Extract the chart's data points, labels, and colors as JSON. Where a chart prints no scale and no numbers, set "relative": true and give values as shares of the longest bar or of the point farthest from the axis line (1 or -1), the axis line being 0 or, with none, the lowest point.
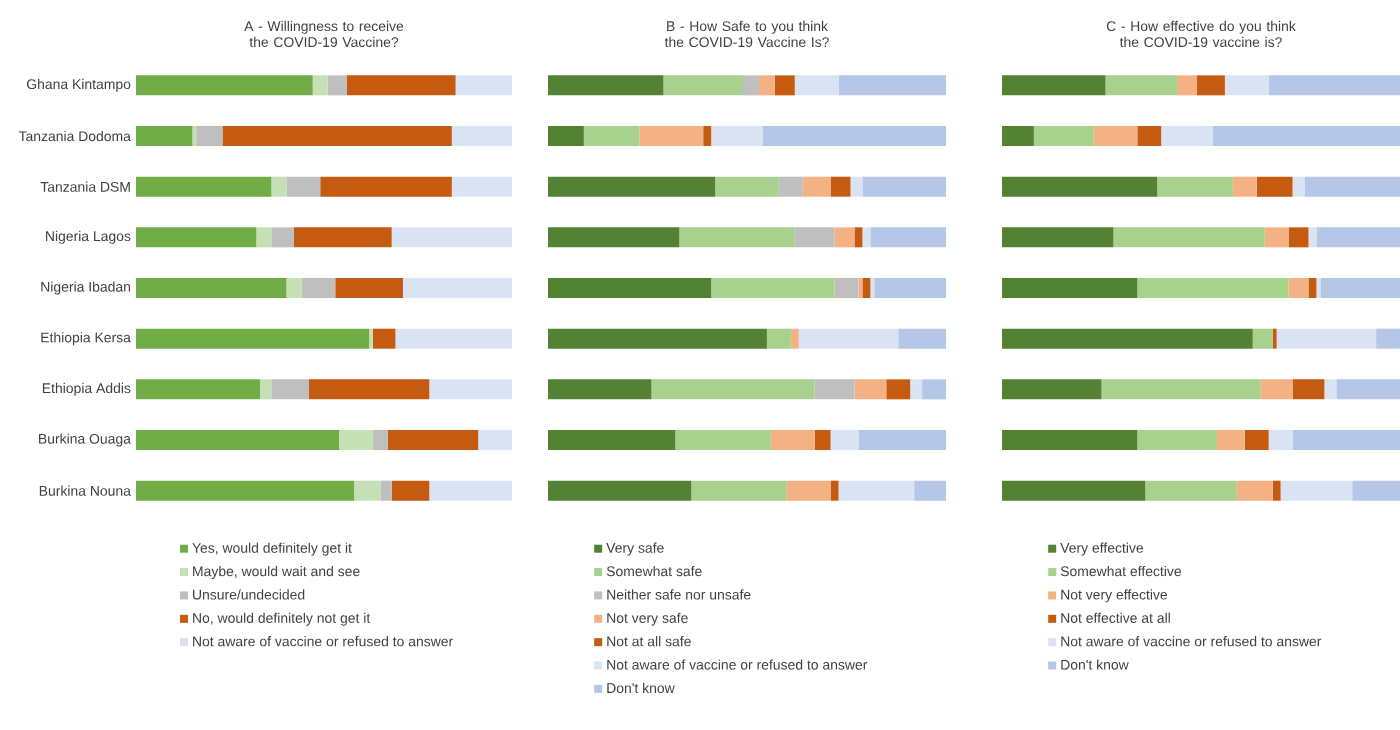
{
  "chart_data": [
    {
      "type": "bar",
      "orientation": "horizontal",
      "stacked": true,
      "relative": true,
      "legend": "bottom",
      "title": "A - Willingness to receive the COVID-19 Vaccine?",
      "categories": [
        "Ghana Kintampo",
        "Tanzania Dodoma",
        "Tanzania DSM",
        "Nigeria Lagos",
        "Nigeria Ibadan",
        "Ethiopia Kersa",
        "Ethiopia Addis",
        "Burkina Ouaga",
        "Burkina Nouna"
      ],
      "series": [
        {
          "name": "Yes, would definitely get it",
          "color": "#70ad47",
          "values": [
            0.47,
            0.15,
            0.36,
            0.32,
            0.4,
            0.62,
            0.33,
            0.54,
            0.58
          ]
        },
        {
          "name": "Maybe, would wait and see",
          "color": "#c5e0b4",
          "values": [
            0.04,
            0.01,
            0.04,
            0.04,
            0.04,
            0.01,
            0.03,
            0.09,
            0.07
          ]
        },
        {
          "name": "Unsure/undecided",
          "color": "#bfbfbf",
          "values": [
            0.05,
            0.07,
            0.09,
            0.06,
            0.09,
            0,
            0.1,
            0.04,
            0.03
          ]
        },
        {
          "name": "No, would definitely not get it",
          "color": "#c55a11",
          "values": [
            0.29,
            0.61,
            0.35,
            0.26,
            0.18,
            0.06,
            0.32,
            0.24,
            0.1
          ]
        },
        {
          "name": "Not aware of vaccine or refused to answer",
          "color": "#dae3f3",
          "values": [
            0.15,
            0.16,
            0.16,
            0.32,
            0.29,
            0.31,
            0.22,
            0.09,
            0.22
          ]
        }
      ]
    },
    {
      "type": "bar",
      "orientation": "horizontal",
      "stacked": true,
      "relative": true,
      "legend": "bottom",
      "title": "B - How Safe to you think the COVID-19 Vaccine Is?",
      "categories": [
        null,
        null,
        null,
        null,
        null,
        null,
        null,
        null,
        null
      ],
      "series": [
        {
          "name": "Very safe",
          "color": "#548235",
          "values": [
            0.29,
            0.09,
            0.42,
            0.33,
            0.41,
            0.55,
            0.26,
            0.32,
            0.36
          ]
        },
        {
          "name": "Somewhat safe",
          "color": "#a9d18e",
          "values": [
            0.2,
            0.14,
            0.16,
            0.29,
            0.31,
            0.06,
            0.41,
            0.24,
            0.24
          ]
        },
        {
          "name": "Neither safe nor unsafe",
          "color": "#bfbfbf",
          "values": [
            0.04,
            0,
            0.06,
            0.1,
            0.06,
            0,
            0.1,
            0,
            0
          ]
        },
        {
          "name": "Not very safe",
          "color": "#f4b183",
          "values": [
            0.04,
            0.16,
            0.07,
            0.05,
            0.01,
            0.02,
            0.08,
            0.11,
            0.11
          ]
        },
        {
          "name": "Not at all safe",
          "color": "#c55a11",
          "values": [
            0.05,
            0.02,
            0.05,
            0.02,
            0.02,
            0,
            0.06,
            0.04,
            0.02
          ]
        },
        {
          "name": "Not aware of vaccine or refused to answer",
          "color": "#dae3f3",
          "values": [
            0.11,
            0.13,
            0.03,
            0.02,
            0.01,
            0.25,
            0.03,
            0.07,
            0.19
          ]
        },
        {
          "name": "Don't know",
          "color": "#b4c7e7",
          "values": [
            0.27,
            0.46,
            0.21,
            0.19,
            0.18,
            0.12,
            0.06,
            0.22,
            0.08
          ]
        }
      ]
    },
    {
      "type": "bar",
      "orientation": "horizontal",
      "stacked": true,
      "relative": true,
      "legend": "bottom",
      "title": "C - How effective do you think the COVID-19 vaccine is?",
      "categories": [
        null,
        null,
        null,
        null,
        null,
        null,
        null,
        null,
        null
      ],
      "series": [
        {
          "name": "Very effective",
          "color": "#548235",
          "values": [
            0.26,
            0.08,
            0.39,
            0.28,
            0.34,
            0.63,
            0.25,
            0.34,
            0.36
          ]
        },
        {
          "name": "Somewhat effective",
          "color": "#a9d18e",
          "values": [
            0.18,
            0.15,
            0.19,
            0.38,
            0.38,
            0.05,
            0.4,
            0.2,
            0.23
          ]
        },
        {
          "name": "Not very effective",
          "color": "#f4b183",
          "values": [
            0.05,
            0.11,
            0.06,
            0.06,
            0.05,
            0,
            0.08,
            0.07,
            0.09
          ]
        },
        {
          "name": "Not effective at all",
          "color": "#c55a11",
          "values": [
            0.07,
            0.06,
            0.09,
            0.05,
            0.02,
            0.01,
            0.08,
            0.06,
            0.02
          ]
        },
        {
          "name": "Not aware of vaccine or refused to answer",
          "color": "#dae3f3",
          "values": [
            0.11,
            0.13,
            0.03,
            0.02,
            0.01,
            0.25,
            0.03,
            0.06,
            0.18
          ]
        },
        {
          "name": "Don't know",
          "color": "#b4c7e7",
          "values": [
            0.33,
            0.47,
            0.24,
            0.21,
            0.2,
            0.06,
            0.16,
            0.27,
            0.12
          ]
        }
      ]
    }
  ]
}
